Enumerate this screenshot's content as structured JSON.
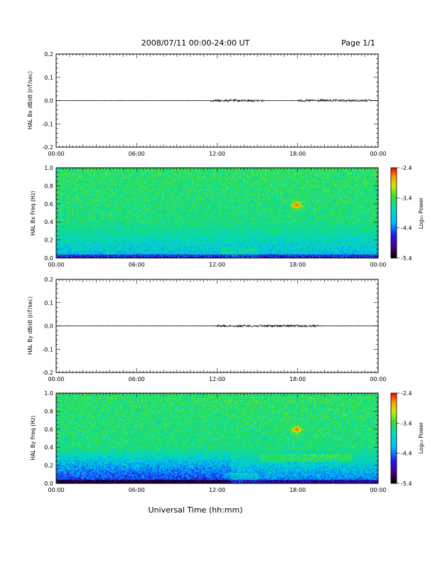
{
  "header": {
    "title": "2008/07/11  00:00-24:00 UT",
    "page": "Page 1/1"
  },
  "time_ticks": [
    "00:00",
    "06:00",
    "12:00",
    "18:00",
    "00:00"
  ],
  "xlabel": "Universal Time (hh:mm)",
  "colorbar": {
    "label": "Log₁₀ Power",
    "ticks": [
      "-2.4",
      "-3.4",
      "-4.4",
      "-5.4"
    ],
    "range": [
      -5.4,
      -2.4
    ]
  },
  "chart_data": [
    {
      "type": "line",
      "ylabel": "HAL Bx dB/dt (nT/sec)",
      "yticks": [
        "0.2",
        "0.1",
        "0.0",
        "-0.1",
        "-0.2"
      ],
      "ylim": [
        -0.2,
        0.2
      ],
      "xlim_hours": [
        0,
        24
      ],
      "series": [
        {
          "baseline": 0.0,
          "active_intervals_hours": [
            [
              11.5,
              15.5
            ],
            [
              18.0,
              23.5
            ]
          ]
        }
      ]
    },
    {
      "type": "heatmap",
      "ylabel": "HAL Bx Freq (Hz)",
      "yticks": [
        "1.0",
        "0.8",
        "0.6",
        "0.4",
        "0.2",
        "0.0"
      ],
      "ylim": [
        0.0,
        1.0
      ],
      "xlim_hours": [
        0,
        24
      ],
      "features": [
        {
          "t_hours": 17.9,
          "f_hz": 0.59,
          "log_power": -2.5
        },
        {
          "t_hours": 16.3,
          "f_hz": 0.3,
          "log_power": -3.5
        }
      ]
    },
    {
      "type": "line",
      "ylabel": "HAL By dB/dt (nT/sec)",
      "yticks": [
        "0.2",
        "0.1",
        "0.0",
        "-0.1",
        "-0.2"
      ],
      "ylim": [
        -0.2,
        0.2
      ],
      "xlim_hours": [
        0,
        24
      ],
      "series": [
        {
          "baseline": 0.0,
          "active_intervals_hours": [
            [
              12.0,
              19.5
            ]
          ]
        }
      ]
    },
    {
      "type": "heatmap",
      "ylabel": "HAL By Freq (Hz)",
      "yticks": [
        "1.0",
        "0.8",
        "0.6",
        "0.4",
        "0.2",
        "0.0"
      ],
      "ylim": [
        0.0,
        1.0
      ],
      "xlim_hours": [
        0,
        24
      ],
      "features": [
        {
          "t_hours": 17.9,
          "f_hz": 0.6,
          "log_power": -2.5
        },
        {
          "t_hours": 16.3,
          "f_hz": 0.29,
          "log_power": -3.5
        }
      ]
    }
  ]
}
